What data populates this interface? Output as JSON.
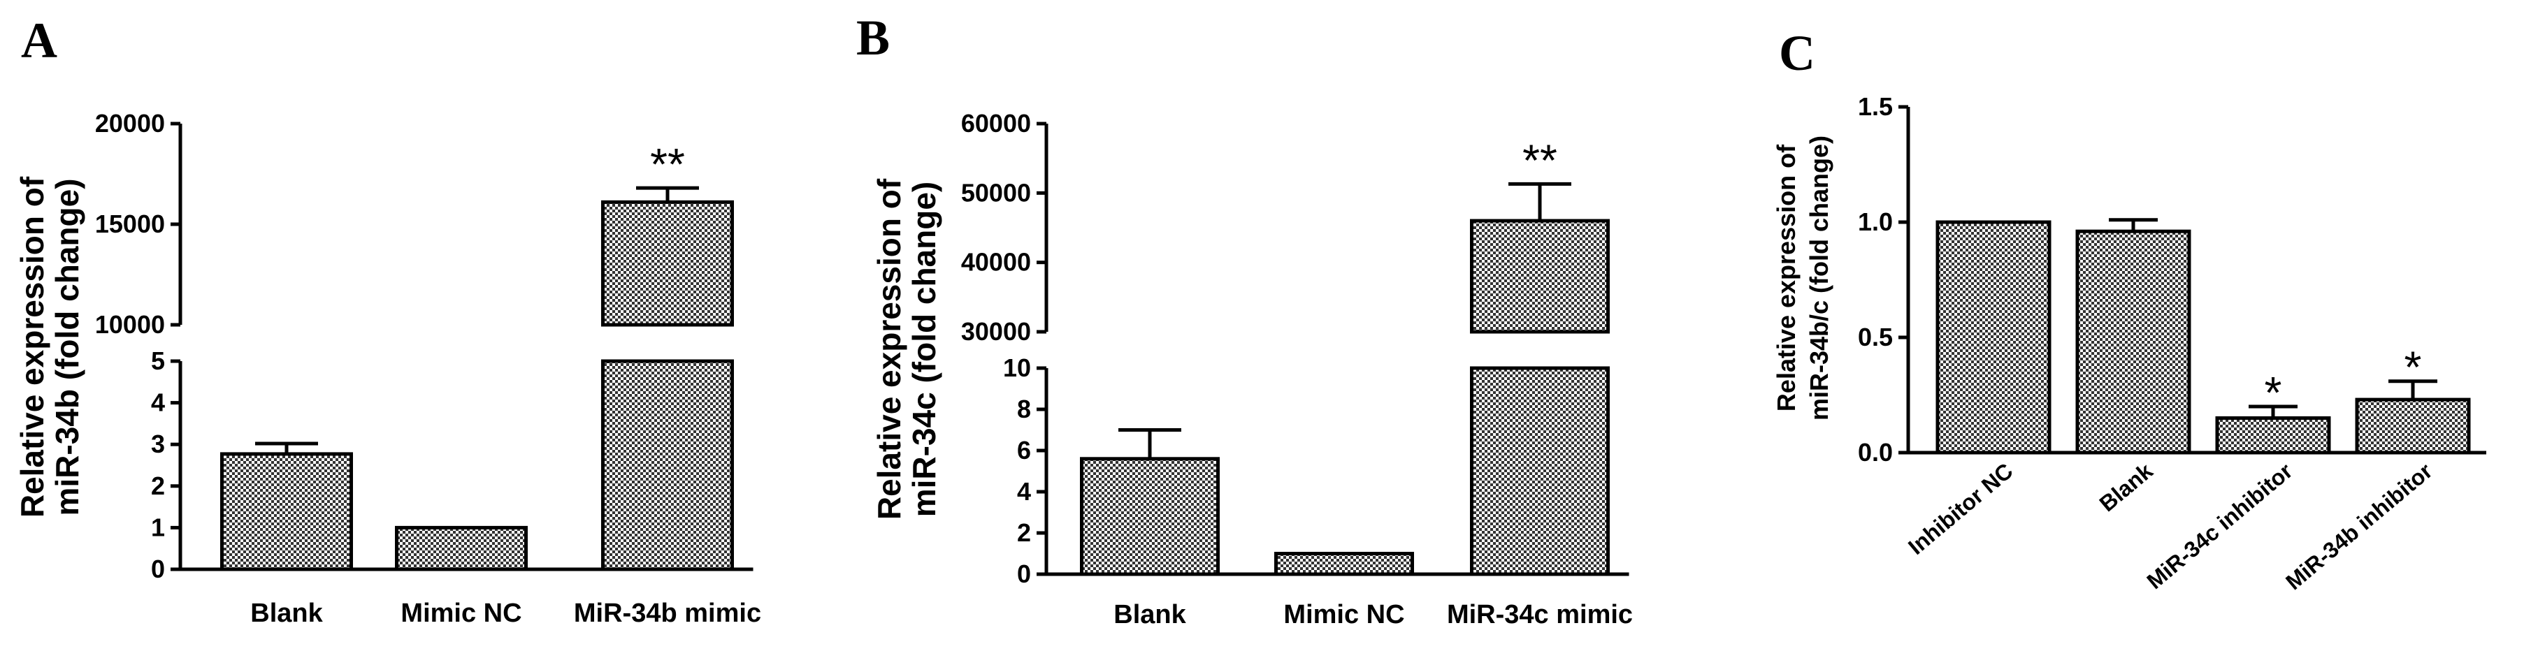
{
  "chart_data": [
    {
      "type": "bar",
      "panel": "A",
      "ylabel": "Relative expression of miR-34b (fold change)",
      "ylabel_lines": [
        "Relative expression of",
        "miR-34b (fold change)"
      ],
      "broken_axis": true,
      "lower_ylim": [
        0,
        5
      ],
      "upper_ylim": [
        10000,
        20000
      ],
      "lower_ticks": [
        "0",
        "1",
        "2",
        "3",
        "4",
        "5"
      ],
      "upper_ticks": [
        "10000",
        "15000",
        "20000"
      ],
      "categories": [
        "Blank",
        "Mimic NC",
        "MiR-34b mimic"
      ],
      "values": [
        2.77,
        1.0,
        16100
      ],
      "errors": [
        0.25,
        0.0,
        700
      ],
      "significance": [
        "",
        "",
        "**"
      ],
      "color": "#555555"
    },
    {
      "type": "bar",
      "panel": "B",
      "ylabel": "Relative expression of miR-34c (fold change)",
      "ylabel_lines": [
        "Relative expression of",
        "miR-34c (fold change)"
      ],
      "broken_axis": true,
      "lower_ylim": [
        0,
        10
      ],
      "upper_ylim": [
        30000,
        60000
      ],
      "lower_ticks": [
        "0",
        "2",
        "4",
        "6",
        "8",
        "10"
      ],
      "upper_ticks": [
        "30000",
        "40000",
        "50000",
        "60000"
      ],
      "categories": [
        "Blank",
        "Mimic NC",
        "MiR-34c mimic"
      ],
      "values": [
        5.6,
        1.0,
        46000
      ],
      "errors": [
        1.4,
        0.0,
        5300
      ],
      "significance": [
        "",
        "",
        "**"
      ],
      "color": "#555555"
    },
    {
      "type": "bar",
      "panel": "C",
      "ylabel": "Relative expression of miR-34b/c (fold change)",
      "ylabel_lines": [
        "Relative expression of",
        "miR-34b/c (fold change)"
      ],
      "broken_axis": false,
      "ylim": [
        0,
        1.5
      ],
      "ticks": [
        "0.0",
        "0.5",
        "1.0",
        "1.5"
      ],
      "categories": [
        "Inhibitor NC",
        "Blank",
        "MiR-34c inhibitor",
        "MiR-34b inhibitor"
      ],
      "values": [
        1.0,
        0.96,
        0.15,
        0.23
      ],
      "errors": [
        0.0,
        0.05,
        0.05,
        0.08
      ],
      "significance": [
        "",
        "",
        "*",
        "*"
      ],
      "color": "#555555"
    }
  ]
}
